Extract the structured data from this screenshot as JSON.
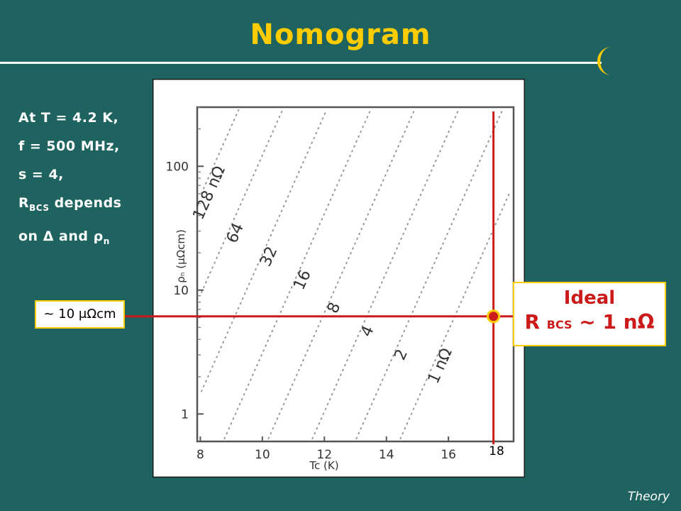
{
  "slide": {
    "title": "Nomogram",
    "footer": "Theory",
    "colors": {
      "background": "#1f6360",
      "title": "#ffcc00",
      "marker": "#cc1a1a",
      "box_border": "#ffcc00"
    }
  },
  "conditions": {
    "line1": "At T = 4.2 K,",
    "line2": "f = 500 MHz,",
    "line3": "s = 4,",
    "line4_main": "R",
    "line4_sub": "BCS",
    "line4_rest": " depends",
    "line5_prefix": "on Δ and ρ",
    "line5_sub": "n"
  },
  "callouts": {
    "rho_label": "~ 10 μΩcm",
    "ideal_line1": "Ideal",
    "ideal_r": "R ",
    "ideal_sub": "BCS",
    "ideal_rest": " ~ 1 nΩ",
    "tc_label": "18"
  },
  "chart_data": {
    "type": "nomogram",
    "xlabel": "Tc (K)",
    "ylabel": "ρ",
    "ylabel_sub": "n",
    "ylabel_unit": " (μΩcm)",
    "xlim": [
      7.9,
      18.1
    ],
    "ylim": [
      0.6,
      300
    ],
    "y_scale": "log",
    "x_ticks": [
      8,
      10,
      12,
      14,
      16
    ],
    "y_ticks": [
      1,
      10,
      100
    ],
    "contours": [
      {
        "value": 128,
        "label": "128 nΩ"
      },
      {
        "value": 64,
        "label": "64"
      },
      {
        "value": 32,
        "label": "32"
      },
      {
        "value": 16,
        "label": "16"
      },
      {
        "value": 8,
        "label": "8"
      },
      {
        "value": 4,
        "label": "4"
      },
      {
        "value": 2,
        "label": "2"
      },
      {
        "value": 1,
        "label": "1 nΩ"
      }
    ],
    "marker": {
      "tc": 18,
      "rho": 10
    }
  }
}
